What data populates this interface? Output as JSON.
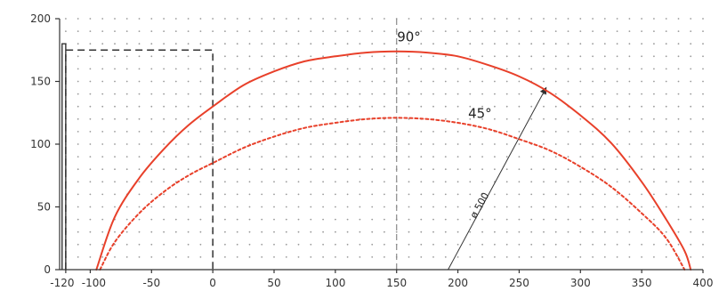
{
  "chart_data": {
    "type": "line",
    "title": "",
    "xlabel": "",
    "ylabel": "",
    "xlim": [
      -125,
      400
    ],
    "ylim": [
      0,
      200
    ],
    "x_ticks": [
      -120,
      -100,
      -50,
      0,
      50,
      100,
      150,
      200,
      250,
      300,
      350,
      400
    ],
    "x_tick_labels": [
      "-120",
      "-100",
      "-50",
      "0",
      "50",
      "100",
      "150",
      "200",
      "250",
      "300",
      "350",
      "400"
    ],
    "y_ticks": [
      0,
      50,
      100,
      150,
      200
    ],
    "y_tick_labels": [
      "0",
      "50",
      "100",
      "150",
      "200"
    ],
    "grid": "dotted",
    "series": [
      {
        "name": "90°",
        "style": "solid",
        "color": "#e8402a",
        "x": [
          -95,
          -80,
          -60,
          -40,
          -20,
          0,
          25,
          50,
          75,
          100,
          125,
          150,
          175,
          200,
          225,
          250,
          275,
          300,
          325,
          350,
          370,
          385,
          390
        ],
        "y": [
          0,
          42,
          73,
          96,
          115,
          130,
          147,
          158,
          166,
          170,
          173,
          174,
          173,
          170,
          163,
          154,
          141,
          123,
          101,
          70,
          40,
          15,
          0
        ]
      },
      {
        "name": "45°",
        "style": "dotted",
        "color": "#e8402a",
        "x": [
          -92,
          -80,
          -60,
          -40,
          -20,
          0,
          25,
          50,
          75,
          100,
          125,
          150,
          175,
          200,
          225,
          250,
          275,
          300,
          325,
          350,
          370,
          385
        ],
        "y": [
          0,
          22,
          45,
          62,
          75,
          85,
          97,
          106,
          113,
          117,
          120,
          121,
          120,
          117,
          112,
          104,
          95,
          82,
          66,
          45,
          25,
          0
        ]
      }
    ],
    "annotations": [
      {
        "text": "90°",
        "x": 160,
        "y": 182
      },
      {
        "text": "45°",
        "x": 218,
        "y": 121
      },
      {
        "text": "ø 500",
        "x": 220,
        "y": 50
      }
    ],
    "reference_lines": [
      {
        "axis": "x",
        "value": 150,
        "style": "dashed",
        "color": "#8a8a8a"
      },
      {
        "shape": "dashed-box",
        "x_from": -120,
        "x_to": 0,
        "y_top": 175,
        "color": "#333333"
      },
      {
        "shape": "solid-box",
        "x_from": -123,
        "x_to": -120,
        "y_top": 180,
        "color": "#333333"
      },
      {
        "shape": "arrow",
        "x_from": 192,
        "y_from": 0,
        "x_to": 272,
        "y_to": 145,
        "color": "#333333"
      }
    ]
  }
}
